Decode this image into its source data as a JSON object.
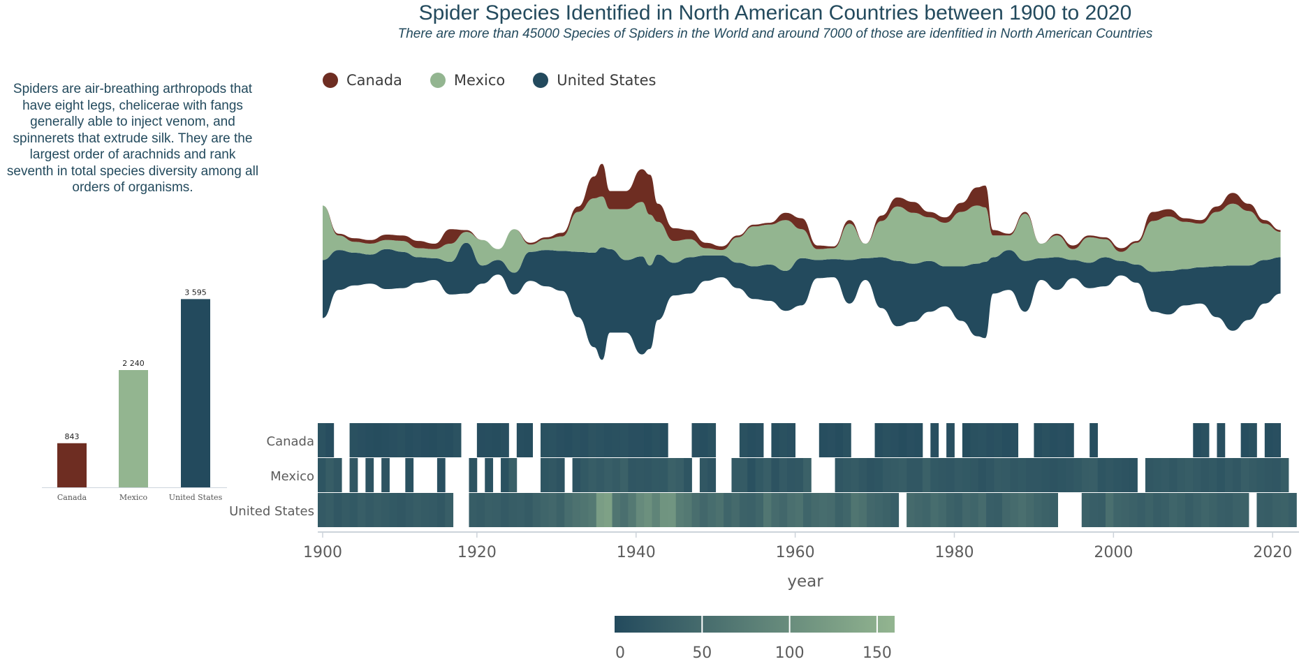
{
  "title": "Spider Species Identified in North American Countries between 1900 to 2020",
  "subtitle": "There are more than 45000 Species of Spiders in the World and around 7000 of those are idenfitied in North American Countries",
  "description": "Spiders are air-breathing arthropods that have eight legs, chelicerae with fangs generally able to inject venom, and spinnerets that extrude silk. They are the largest order of arachnids and rank seventh in total species diversity among all orders of organisms.",
  "colors": {
    "Canada": "#6e2d22",
    "Mexico": "#93b590",
    "United States": "#234a5d"
  },
  "legend": [
    {
      "label": "Canada",
      "color": "#6e2d22"
    },
    {
      "label": "Mexico",
      "color": "#93b590"
    },
    {
      "label": "United States",
      "color": "#234a5d"
    }
  ],
  "chart_data": [
    {
      "type": "bar",
      "categories": [
        "Canada",
        "Mexico",
        "United States"
      ],
      "values": [
        843,
        2240,
        3595
      ],
      "value_labels": [
        "843",
        "2 240",
        "3 595"
      ],
      "ylim": [
        0,
        3600
      ]
    },
    {
      "type": "area",
      "subtype": "streamgraph",
      "x": [
        1900,
        1902,
        1904,
        1906,
        1908,
        1910,
        1912,
        1914,
        1916,
        1918,
        1920,
        1922,
        1924,
        1926,
        1928,
        1930,
        1932,
        1934,
        1935,
        1936,
        1938,
        1940,
        1941,
        1942,
        1944,
        1946,
        1948,
        1950,
        1952,
        1954,
        1956,
        1958,
        1960,
        1962,
        1964,
        1966,
        1968,
        1970,
        1972,
        1974,
        1976,
        1978,
        1980,
        1982,
        1983,
        1984,
        1986,
        1988,
        1990,
        1992,
        1994,
        1996,
        1998,
        2000,
        2002,
        2004,
        2006,
        2008,
        2010,
        2012,
        2014,
        2016,
        2018,
        2020
      ],
      "series": [
        {
          "name": "Canada",
          "values": [
            0,
            1,
            2,
            2,
            3,
            3,
            4,
            3,
            8,
            1,
            0,
            0,
            0,
            1,
            1,
            2,
            3,
            12,
            18,
            10,
            10,
            18,
            22,
            10,
            7,
            5,
            3,
            2,
            1,
            1,
            1,
            4,
            6,
            2,
            1,
            2,
            0,
            3,
            5,
            6,
            3,
            3,
            5,
            10,
            12,
            3,
            1,
            1,
            0,
            1,
            2,
            1,
            1,
            2,
            1,
            5,
            4,
            2,
            2,
            3,
            6,
            4,
            2,
            1
          ]
        },
        {
          "name": "Mexico",
          "values": [
            30,
            8,
            6,
            6,
            5,
            6,
            5,
            5,
            10,
            6,
            14,
            6,
            24,
            4,
            6,
            8,
            22,
            30,
            28,
            22,
            28,
            30,
            28,
            18,
            12,
            10,
            4,
            3,
            14,
            22,
            22,
            28,
            16,
            6,
            6,
            20,
            8,
            20,
            30,
            28,
            24,
            24,
            30,
            32,
            30,
            12,
            8,
            26,
            8,
            12,
            6,
            14,
            10,
            5,
            12,
            28,
            30,
            26,
            24,
            30,
            34,
            30,
            20,
            14
          ]
        },
        {
          "name": "United States",
          "values": [
            32,
            22,
            18,
            16,
            22,
            20,
            14,
            12,
            18,
            28,
            10,
            8,
            12,
            16,
            20,
            22,
            36,
            52,
            62,
            46,
            40,
            54,
            46,
            36,
            18,
            20,
            14,
            12,
            14,
            18,
            20,
            22,
            26,
            10,
            10,
            24,
            12,
            28,
            36,
            32,
            28,
            22,
            30,
            40,
            42,
            20,
            22,
            28,
            12,
            18,
            10,
            14,
            16,
            8,
            10,
            22,
            24,
            20,
            20,
            28,
            36,
            30,
            24,
            20
          ]
        }
      ],
      "xlim": [
        1900,
        2021
      ]
    },
    {
      "type": "heatmap",
      "rows": [
        "Canada",
        "Mexico",
        "United States"
      ],
      "x_start": 1900,
      "x_end": 2021,
      "xlabel": "year",
      "xticks": [
        1900,
        1920,
        1940,
        1960,
        1980,
        2000,
        2020
      ],
      "values": [
        [
          12,
          5,
          0,
          0,
          10,
          8,
          6,
          4,
          6,
          8,
          10,
          6,
          8,
          5,
          4,
          7,
          6,
          12,
          0,
          0,
          5,
          6,
          4,
          8,
          0,
          6,
          4,
          0,
          10,
          12,
          8,
          6,
          10,
          8,
          14,
          12,
          9,
          10,
          12,
          8,
          8,
          6,
          10,
          4,
          0,
          0,
          0,
          8,
          6,
          10,
          0,
          0,
          0,
          10,
          6,
          8,
          0,
          6,
          10,
          8,
          0,
          0,
          0,
          6,
          8,
          4,
          10,
          0,
          0,
          0,
          6,
          10,
          8,
          4,
          8,
          6,
          0,
          8,
          0,
          8,
          0,
          4,
          10,
          12,
          8,
          10,
          6,
          8,
          0,
          0,
          6,
          10,
          6,
          8,
          6,
          0,
          0,
          6,
          0,
          0,
          0,
          0,
          0,
          0,
          0,
          0,
          0,
          0,
          0,
          0,
          6,
          10,
          0,
          8,
          0,
          0,
          6,
          10,
          0,
          6,
          8,
          0
        ],
        [
          16,
          28,
          20,
          0,
          20,
          0,
          14,
          0,
          14,
          0,
          0,
          10,
          0,
          0,
          0,
          8,
          0,
          0,
          0,
          14,
          0,
          12,
          0,
          10,
          32,
          0,
          0,
          0,
          16,
          20,
          14,
          0,
          14,
          22,
          28,
          24,
          30,
          26,
          34,
          18,
          20,
          18,
          22,
          22,
          34,
          30,
          16,
          0,
          20,
          14,
          0,
          0,
          24,
          26,
          10,
          22,
          30,
          14,
          24,
          18,
          20,
          34,
          0,
          0,
          0,
          18,
          22,
          26,
          20,
          14,
          16,
          24,
          26,
          28,
          20,
          20,
          34,
          22,
          20,
          18,
          24,
          22,
          20,
          14,
          18,
          26,
          24,
          20,
          22,
          18,
          18,
          16,
          14,
          16,
          18,
          22,
          28,
          30,
          16,
          20,
          16,
          14,
          12,
          0,
          20,
          22,
          24,
          20,
          26,
          28,
          24,
          20,
          22,
          16,
          24,
          20,
          30,
          26,
          22,
          20,
          18,
          28
        ],
        [
          24,
          28,
          20,
          26,
          22,
          30,
          24,
          28,
          26,
          22,
          20,
          24,
          28,
          26,
          24,
          20,
          30,
          0,
          0,
          28,
          26,
          32,
          30,
          24,
          28,
          30,
          26,
          34,
          40,
          44,
          36,
          52,
          60,
          64,
          70,
          124,
          130,
          64,
          56,
          70,
          96,
          104,
          86,
          110,
          112,
          76,
          70,
          54,
          44,
          52,
          58,
          40,
          48,
          36,
          34,
          42,
          66,
          50,
          44,
          56,
          60,
          40,
          48,
          52,
          50,
          36,
          42,
          64,
          58,
          44,
          40,
          36,
          30,
          0,
          48,
          44,
          40,
          52,
          46,
          36,
          32,
          44,
          40,
          50,
          30,
          28,
          44,
          50,
          56,
          48,
          40,
          36,
          32,
          0,
          0,
          0,
          34,
          30,
          28,
          56,
          40,
          38,
          34,
          30,
          36,
          28,
          32,
          40,
          36,
          28,
          34,
          40,
          36,
          30,
          28,
          34,
          36,
          0,
          30,
          28,
          34,
          36,
          30
        ]
      ]
    },
    {
      "type": "colorscale",
      "range": [
        0,
        160
      ],
      "ticks": [
        0,
        50,
        100,
        150
      ],
      "colors": [
        "#234a5d",
        "#93b590"
      ]
    }
  ]
}
